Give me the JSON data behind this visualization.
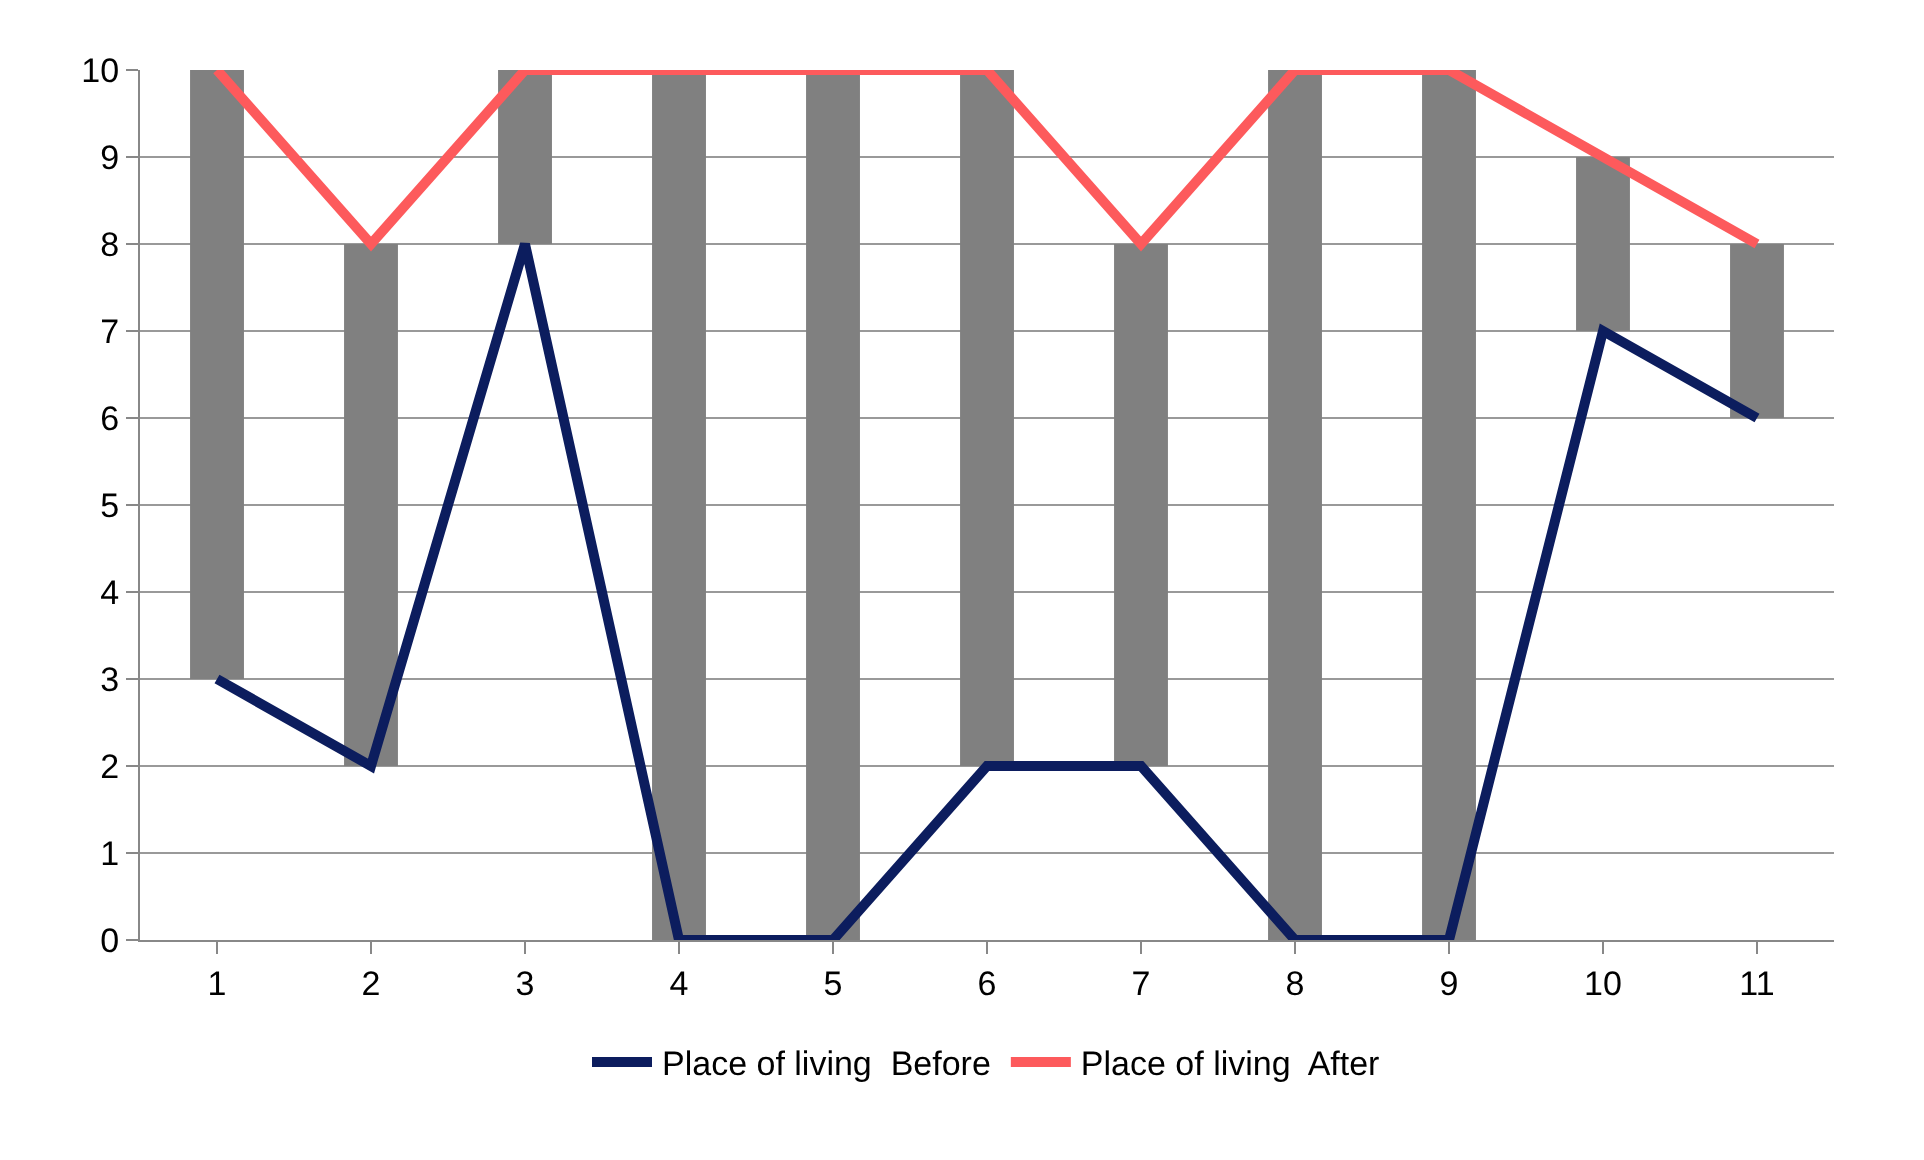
{
  "chart_data": {
    "type": "line",
    "categories": [
      "1",
      "2",
      "3",
      "4",
      "5",
      "6",
      "7",
      "8",
      "9",
      "10",
      "11"
    ],
    "series": [
      {
        "name": "Place of living  Before",
        "color": "#0c1d5e",
        "values": [
          3,
          2,
          8,
          0,
          0,
          2,
          2,
          0,
          0,
          7,
          6
        ]
      },
      {
        "name": "Place of living  After",
        "color": "#fd5a5c",
        "values": [
          10,
          8,
          10,
          10,
          10,
          10,
          8,
          10,
          10,
          9,
          8
        ]
      },
      {
        "type": "bar",
        "color": "#808080",
        "base": [
          3,
          2,
          8,
          0,
          0,
          2,
          2,
          0,
          0,
          7,
          6
        ],
        "values": [
          7,
          6,
          2,
          10,
          10,
          8,
          6,
          10,
          10,
          2,
          2
        ]
      }
    ],
    "ylim": [
      0,
      10
    ],
    "yticks": [
      0,
      1,
      2,
      3,
      4,
      5,
      6,
      7,
      8,
      9,
      10
    ],
    "grid": "y",
    "legend": "bottom"
  }
}
